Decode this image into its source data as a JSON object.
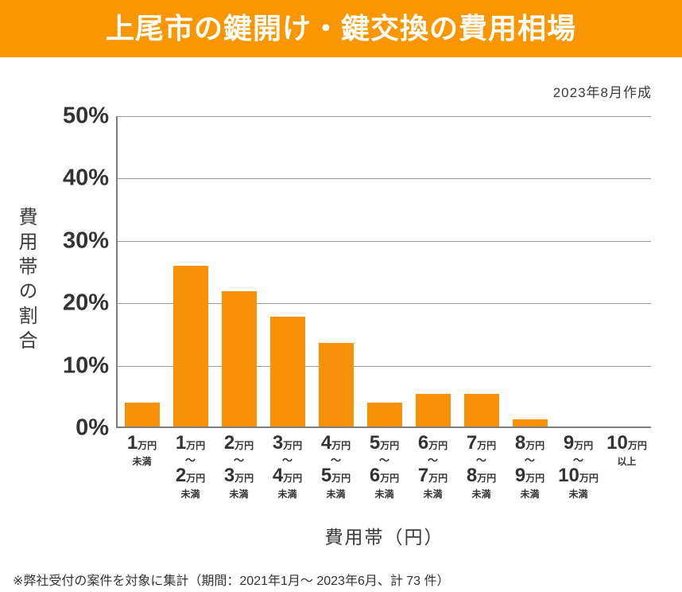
{
  "header": {
    "title": "上尾市の鍵開け・鍵交換の費用相場",
    "bg_color": "#F99600",
    "text_color": "#FFFFFF"
  },
  "meta": {
    "created_note": "2023年8月作成"
  },
  "chart_data": {
    "type": "bar",
    "title": "上尾市の鍵開け・鍵交換の費用相場",
    "ylabel": "費用帯の割合",
    "xlabel": "費用帯（円）",
    "ylim": [
      0,
      50
    ],
    "ytick_labels": [
      "50%",
      "40%",
      "30%",
      "20%",
      "10%",
      "0%"
    ],
    "grid": true,
    "legend": "none",
    "bar_color": "#F99108",
    "categories": [
      "1万円未満",
      "1万円〜2万円未満",
      "2万円〜3万円未満",
      "3万円〜4万円未満",
      "4万円〜5万円未満",
      "5万円〜6万円未満",
      "6万円〜7万円未満",
      "7万円〜8万円未満",
      "8万円〜9万円未満",
      "9万円〜10万円未満",
      "10万円以上"
    ],
    "category_lines": [
      {
        "num1": "1",
        "unit1": "万円",
        "tilde": "",
        "num2": "",
        "unit2": "",
        "suffix": "未満"
      },
      {
        "num1": "1",
        "unit1": "万円",
        "tilde": "〜",
        "num2": "2",
        "unit2": "万円",
        "suffix": "未満"
      },
      {
        "num1": "2",
        "unit1": "万円",
        "tilde": "〜",
        "num2": "3",
        "unit2": "万円",
        "suffix": "未満"
      },
      {
        "num1": "3",
        "unit1": "万円",
        "tilde": "〜",
        "num2": "4",
        "unit2": "万円",
        "suffix": "未満"
      },
      {
        "num1": "4",
        "unit1": "万円",
        "tilde": "〜",
        "num2": "5",
        "unit2": "万円",
        "suffix": "未満"
      },
      {
        "num1": "5",
        "unit1": "万円",
        "tilde": "〜",
        "num2": "6",
        "unit2": "万円",
        "suffix": "未満"
      },
      {
        "num1": "6",
        "unit1": "万円",
        "tilde": "〜",
        "num2": "7",
        "unit2": "万円",
        "suffix": "未満"
      },
      {
        "num1": "7",
        "unit1": "万円",
        "tilde": "〜",
        "num2": "8",
        "unit2": "万円",
        "suffix": "未満"
      },
      {
        "num1": "8",
        "unit1": "万円",
        "tilde": "〜",
        "num2": "9",
        "unit2": "万円",
        "suffix": "未満"
      },
      {
        "num1": "9",
        "unit1": "万円",
        "tilde": "〜",
        "num2": "10",
        "unit2": "万円",
        "suffix": "未満"
      },
      {
        "num1": "10",
        "unit1": "万円",
        "tilde": "",
        "num2": "",
        "unit2": "",
        "suffix": "以上"
      }
    ],
    "values": [
      4.1,
      26.0,
      21.9,
      17.8,
      13.7,
      4.1,
      5.5,
      5.5,
      1.4,
      0,
      0
    ]
  },
  "footnote": {
    "text": "※弊社受付の案件を対象に集計（期間：2021年1月～ 2023年6月、計 73 件）"
  }
}
